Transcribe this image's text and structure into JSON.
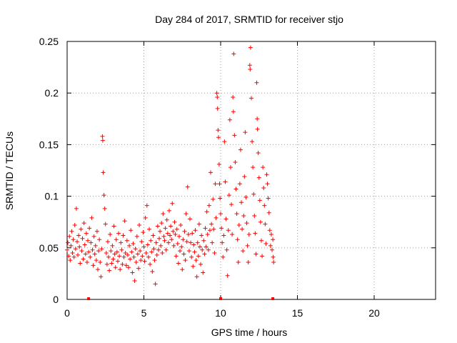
{
  "chart_data": {
    "type": "scatter",
    "title": "Day 284 of 2017, SRMTID for receiver stjo",
    "xlabel": "GPS time / hours",
    "ylabel": "SRMTID / TECUs",
    "xlim": [
      0,
      24
    ],
    "ylim": [
      0,
      0.25
    ],
    "xticks": [
      0,
      5,
      10,
      15,
      20
    ],
    "xtick_labels": [
      "0",
      "5",
      "10",
      "15",
      "20"
    ],
    "yticks": [
      0,
      0.05,
      0.1,
      0.15,
      0.2,
      0.25
    ],
    "ytick_labels": [
      "0",
      "0.05",
      "0.1",
      "0.15",
      "0.2",
      "0.25"
    ],
    "grid": true,
    "legend": "none",
    "series_color": "#ff0000",
    "marker_symbol": "+",
    "baseline_markers_x": [
      1.4,
      10.0,
      13.4
    ],
    "points": [
      [
        0.0,
        0.048
      ],
      [
        0.05,
        0.055
      ],
      [
        0.1,
        0.042
      ],
      [
        0.15,
        0.061
      ],
      [
        0.2,
        0.038
      ],
      [
        0.25,
        0.052
      ],
      [
        0.3,
        0.066
      ],
      [
        0.35,
        0.045
      ],
      [
        0.4,
        0.058
      ],
      [
        0.45,
        0.041
      ],
      [
        0.5,
        0.072
      ],
      [
        0.55,
        0.049
      ],
      [
        0.6,
        0.088
      ],
      [
        0.65,
        0.056
      ],
      [
        0.7,
        0.043
      ],
      [
        0.75,
        0.062
      ],
      [
        0.8,
        0.051
      ],
      [
        0.85,
        0.035
      ],
      [
        0.9,
        0.068
      ],
      [
        0.95,
        0.047
      ],
      [
        1.0,
        0.059
      ],
      [
        1.05,
        0.039
      ],
      [
        1.1,
        0.074
      ],
      [
        1.15,
        0.053
      ],
      [
        1.2,
        0.044
      ],
      [
        1.25,
        0.064
      ],
      [
        1.3,
        0.036
      ],
      [
        1.35,
        0.057
      ],
      [
        1.4,
        0.046
      ],
      [
        1.45,
        0.069
      ],
      [
        1.5,
        0.041
      ],
      [
        1.55,
        0.055
      ],
      [
        1.6,
        0.079
      ],
      [
        1.65,
        0.048
      ],
      [
        1.7,
        0.033
      ],
      [
        1.75,
        0.061
      ],
      [
        1.8,
        0.044
      ],
      [
        1.85,
        0.052
      ],
      [
        1.9,
        0.038
      ],
      [
        1.95,
        0.066
      ],
      [
        2.0,
        0.029
      ],
      [
        2.05,
        0.047
      ],
      [
        2.1,
        0.058
      ],
      [
        2.15,
        0.036
      ],
      [
        2.2,
        0.022
      ],
      [
        2.25,
        0.049
      ],
      [
        2.3,
        0.158
      ],
      [
        2.32,
        0.154
      ],
      [
        2.35,
        0.123
      ],
      [
        2.4,
        0.101
      ],
      [
        2.45,
        0.088
      ],
      [
        2.5,
        0.073
      ],
      [
        2.55,
        0.045
      ],
      [
        2.6,
        0.034
      ],
      [
        2.65,
        0.056
      ],
      [
        2.7,
        0.041
      ],
      [
        2.75,
        0.028
      ],
      [
        2.8,
        0.063
      ],
      [
        2.85,
        0.047
      ],
      [
        2.9,
        0.035
      ],
      [
        2.95,
        0.052
      ],
      [
        3.0,
        0.039
      ],
      [
        3.05,
        0.071
      ],
      [
        3.1,
        0.044
      ],
      [
        3.15,
        0.031
      ],
      [
        3.2,
        0.058
      ],
      [
        3.25,
        0.046
      ],
      [
        3.3,
        0.037
      ],
      [
        3.35,
        0.064
      ],
      [
        3.4,
        0.042
      ],
      [
        3.45,
        0.029
      ],
      [
        3.5,
        0.055
      ],
      [
        3.55,
        0.048
      ],
      [
        3.6,
        0.034
      ],
      [
        3.65,
        0.062
      ],
      [
        3.7,
        0.041
      ],
      [
        3.75,
        0.076
      ],
      [
        3.8,
        0.045
      ],
      [
        3.85,
        0.033
      ],
      [
        3.9,
        0.057
      ],
      [
        3.95,
        0.043
      ],
      [
        4.0,
        0.031
      ],
      [
        4.05,
        0.052
      ],
      [
        4.1,
        0.039
      ],
      [
        4.15,
        0.067
      ],
      [
        4.2,
        0.046
      ],
      [
        4.25,
        0.026
      ],
      [
        4.3,
        0.054
      ],
      [
        4.35,
        0.041
      ],
      [
        4.4,
        0.018
      ],
      [
        4.45,
        0.049
      ],
      [
        4.5,
        0.036
      ],
      [
        4.55,
        0.061
      ],
      [
        4.6,
        0.044
      ],
      [
        4.65,
        0.03
      ],
      [
        4.7,
        0.072
      ],
      [
        4.75,
        0.047
      ],
      [
        4.8,
        0.038
      ],
      [
        4.85,
        0.056
      ],
      [
        4.9,
        0.042
      ],
      [
        4.95,
        0.065
      ],
      [
        5.0,
        0.051
      ],
      [
        5.05,
        0.037
      ],
      [
        5.1,
        0.079
      ],
      [
        5.15,
        0.045
      ],
      [
        5.2,
        0.091
      ],
      [
        5.25,
        0.053
      ],
      [
        5.3,
        0.041
      ],
      [
        5.35,
        0.068
      ],
      [
        5.4,
        0.034
      ],
      [
        5.45,
        0.057
      ],
      [
        5.5,
        0.046
      ],
      [
        5.55,
        0.027
      ],
      [
        5.6,
        0.062
      ],
      [
        5.65,
        0.049
      ],
      [
        5.7,
        0.038
      ],
      [
        5.75,
        0.015
      ],
      [
        5.8,
        0.055
      ],
      [
        5.85,
        0.043
      ],
      [
        5.9,
        0.071
      ],
      [
        5.95,
        0.048
      ],
      [
        6.0,
        0.059
      ],
      [
        6.05,
        0.066
      ],
      [
        6.1,
        0.052
      ],
      [
        6.15,
        0.074
      ],
      [
        6.2,
        0.045
      ],
      [
        6.25,
        0.083
      ],
      [
        6.3,
        0.061
      ],
      [
        6.35,
        0.057
      ],
      [
        6.4,
        0.069
      ],
      [
        6.45,
        0.048
      ],
      [
        6.5,
        0.077
      ],
      [
        6.55,
        0.064
      ],
      [
        6.6,
        0.055
      ],
      [
        6.65,
        0.086
      ],
      [
        6.7,
        0.062
      ],
      [
        6.75,
        0.071
      ],
      [
        6.8,
        0.058
      ],
      [
        6.85,
        0.093
      ],
      [
        6.9,
        0.066
      ],
      [
        6.95,
        0.052
      ],
      [
        7.0,
        0.075
      ],
      [
        7.05,
        0.063
      ],
      [
        7.1,
        0.042
      ],
      [
        7.15,
        0.068
      ],
      [
        7.2,
        0.054
      ],
      [
        7.25,
        0.035
      ],
      [
        7.3,
        0.061
      ],
      [
        7.35,
        0.047
      ],
      [
        7.4,
        0.072
      ],
      [
        7.45,
        0.051
      ],
      [
        7.5,
        0.029
      ],
      [
        7.55,
        0.058
      ],
      [
        7.6,
        0.044
      ],
      [
        7.65,
        0.066
      ],
      [
        7.7,
        0.038
      ],
      [
        7.75,
        0.083
      ],
      [
        7.8,
        0.056
      ],
      [
        7.85,
        0.109
      ],
      [
        7.9,
        0.063
      ],
      [
        7.95,
        0.047
      ],
      [
        8.0,
        0.078
      ],
      [
        8.05,
        0.055
      ],
      [
        8.1,
        0.041
      ],
      [
        8.15,
        0.064
      ],
      [
        8.2,
        0.032
      ],
      [
        8.25,
        0.053
      ],
      [
        8.3,
        0.046
      ],
      [
        8.35,
        0.067
      ],
      [
        8.4,
        0.038
      ],
      [
        8.45,
        0.022
      ],
      [
        8.5,
        0.055
      ],
      [
        8.55,
        0.042
      ],
      [
        8.6,
        0.073
      ],
      [
        8.65,
        0.051
      ],
      [
        8.7,
        0.034
      ],
      [
        8.75,
        0.062
      ],
      [
        8.8,
        0.048
      ],
      [
        8.85,
        0.026
      ],
      [
        8.9,
        0.057
      ],
      [
        8.95,
        0.044
      ],
      [
        9.0,
        0.069
      ],
      [
        9.05,
        0.051
      ],
      [
        9.1,
        0.085
      ],
      [
        9.15,
        0.063
      ],
      [
        9.2,
        0.048
      ],
      [
        9.25,
        0.091
      ],
      [
        9.3,
        0.067
      ],
      [
        9.35,
        0.123
      ],
      [
        9.4,
        0.073
      ],
      [
        9.45,
        0.055
      ],
      [
        9.5,
        0.097
      ],
      [
        9.55,
        0.068
      ],
      [
        9.6,
        0.045
      ],
      [
        9.65,
        0.112
      ],
      [
        9.7,
        0.079
      ],
      [
        9.75,
        0.2
      ],
      [
        9.78,
        0.196
      ],
      [
        9.8,
        0.185
      ],
      [
        9.83,
        0.164
      ],
      [
        9.86,
        0.157
      ],
      [
        9.9,
        0.131
      ],
      [
        9.93,
        0.112
      ],
      [
        9.96,
        0.098
      ],
      [
        10.0,
        0.083
      ],
      [
        10.05,
        0.069
      ],
      [
        10.1,
        0.055
      ],
      [
        10.15,
        0.041
      ],
      [
        10.2,
        0.062
      ],
      [
        10.25,
        0.153
      ],
      [
        10.3,
        0.114
      ],
      [
        10.35,
        0.078
      ],
      [
        10.4,
        0.048
      ],
      [
        10.45,
        0.023
      ],
      [
        10.5,
        0.067
      ],
      [
        10.55,
        0.101
      ],
      [
        10.6,
        0.174
      ],
      [
        10.65,
        0.128
      ],
      [
        10.7,
        0.092
      ],
      [
        10.75,
        0.063
      ],
      [
        10.8,
        0.196
      ],
      [
        10.83,
        0.182
      ],
      [
        10.85,
        0.238
      ],
      [
        10.9,
        0.159
      ],
      [
        10.95,
        0.133
      ],
      [
        11.0,
        0.107
      ],
      [
        11.05,
        0.083
      ],
      [
        11.1,
        0.058
      ],
      [
        11.15,
        0.036
      ],
      [
        11.2,
        0.072
      ],
      [
        11.25,
        0.112
      ],
      [
        11.3,
        0.145
      ],
      [
        11.35,
        0.094
      ],
      [
        11.4,
        0.068
      ],
      [
        11.45,
        0.047
      ],
      [
        11.5,
        0.081
      ],
      [
        11.55,
        0.119
      ],
      [
        11.6,
        0.162
      ],
      [
        11.65,
        0.099
      ],
      [
        11.7,
        0.074
      ],
      [
        11.75,
        0.052
      ],
      [
        11.8,
        0.036
      ],
      [
        11.85,
        0.063
      ],
      [
        11.9,
        0.227
      ],
      [
        11.92,
        0.223
      ],
      [
        11.95,
        0.244
      ],
      [
        12.0,
        0.195
      ],
      [
        12.05,
        0.153
      ],
      [
        12.1,
        0.128
      ],
      [
        12.15,
        0.102
      ],
      [
        12.2,
        0.081
      ],
      [
        12.25,
        0.064
      ],
      [
        12.3,
        0.044
      ],
      [
        12.35,
        0.21
      ],
      [
        12.38,
        0.175
      ],
      [
        12.4,
        0.165
      ],
      [
        12.45,
        0.142
      ],
      [
        12.5,
        0.118
      ],
      [
        12.55,
        0.096
      ],
      [
        12.6,
        0.075
      ],
      [
        12.65,
        0.057
      ],
      [
        12.7,
        0.042
      ],
      [
        12.75,
        0.128
      ],
      [
        12.8,
        0.108
      ],
      [
        12.85,
        0.091
      ],
      [
        12.9,
        0.073
      ],
      [
        12.95,
        0.054
      ],
      [
        13.0,
        0.121
      ],
      [
        13.05,
        0.112
      ],
      [
        13.1,
        0.098
      ],
      [
        13.15,
        0.084
      ],
      [
        13.2,
        0.067
      ],
      [
        13.25,
        0.052
      ],
      [
        13.3,
        0.063
      ],
      [
        13.35,
        0.048
      ],
      [
        13.4,
        0.058
      ],
      [
        13.42,
        0.041
      ],
      [
        13.45,
        0.036
      ]
    ]
  }
}
